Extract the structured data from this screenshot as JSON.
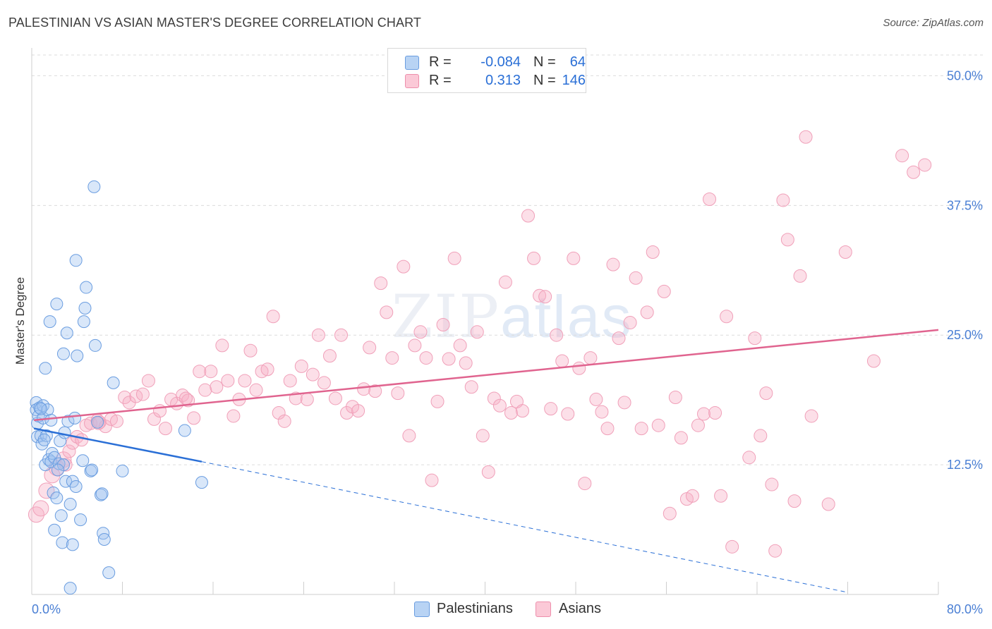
{
  "title": "PALESTINIAN VS ASIAN MASTER'S DEGREE CORRELATION CHART",
  "source": "Source: ZipAtlas.com",
  "watermark": {
    "zip": "ZIP",
    "atlas": "atlas"
  },
  "legend": {
    "rows": [
      {
        "r_label": "R =",
        "r_value": "-0.084",
        "n_label": "N =",
        "n_value": "64",
        "color": "#a8c8f0"
      },
      {
        "r_label": "R =",
        "r_value": "0.313",
        "n_label": "N =",
        "n_value": "146",
        "color": "#f7b6c8"
      }
    ]
  },
  "bottom_legend": {
    "palestinians": "Palestinians",
    "asians": "Asians"
  },
  "chart_data": {
    "type": "scatter",
    "title": "PALESTINIAN VS ASIAN MASTER'S DEGREE CORRELATION CHART",
    "xlabel": "",
    "ylabel": "Master's Degree",
    "xlim": [
      0,
      80
    ],
    "ylim": [
      0,
      52
    ],
    "x_tick_labels": [
      "0.0%",
      "80.0%"
    ],
    "y_ticks": [
      12.5,
      25.0,
      37.5,
      50.0
    ],
    "y_tick_labels": [
      "12.5%",
      "25.0%",
      "37.5%",
      "50.0%"
    ],
    "grid": "horizontal dashed",
    "legend_position": "top-center",
    "colors": {
      "palestinians": "#5b93e0",
      "asians": "#f08aaa",
      "pal_line": "#2a6fd6",
      "asian_line": "#e0648f"
    },
    "series": [
      {
        "name": "Palestinians",
        "trend": {
          "x0": 0.2,
          "y0": 16.0,
          "x1": 15.0,
          "y1": 12.8,
          "dash_to_x": 72,
          "dash_to_y": 0.2
        },
        "points": [
          [
            0.4,
            18.5
          ],
          [
            0.4,
            17.8
          ],
          [
            0.5,
            15.2
          ],
          [
            0.5,
            16.5
          ],
          [
            0.6,
            17.2
          ],
          [
            0.7,
            18.0
          ],
          [
            0.8,
            15.3
          ],
          [
            0.9,
            14.5
          ],
          [
            1.0,
            18.2
          ],
          [
            1.0,
            17.0
          ],
          [
            1.2,
            21.8
          ],
          [
            1.2,
            12.5
          ],
          [
            1.3,
            15.3
          ],
          [
            1.4,
            17.8
          ],
          [
            1.5,
            13.0
          ],
          [
            1.6,
            26.3
          ],
          [
            1.7,
            12.8
          ],
          [
            1.7,
            16.8
          ],
          [
            1.8,
            13.6
          ],
          [
            1.9,
            9.8
          ],
          [
            2.0,
            13.2
          ],
          [
            2.0,
            6.2
          ],
          [
            2.2,
            28.0
          ],
          [
            2.2,
            9.3
          ],
          [
            2.4,
            12.6
          ],
          [
            2.5,
            14.8
          ],
          [
            2.6,
            7.6
          ],
          [
            2.7,
            5.0
          ],
          [
            2.8,
            23.2
          ],
          [
            2.8,
            12.5
          ],
          [
            3.0,
            10.9
          ],
          [
            3.1,
            25.2
          ],
          [
            3.2,
            16.7
          ],
          [
            3.4,
            8.7
          ],
          [
            3.6,
            10.9
          ],
          [
            3.6,
            4.8
          ],
          [
            3.8,
            17.0
          ],
          [
            3.9,
            10.4
          ],
          [
            3.9,
            32.2
          ],
          [
            4.0,
            23.0
          ],
          [
            4.3,
            7.2
          ],
          [
            4.5,
            12.9
          ],
          [
            4.6,
            26.3
          ],
          [
            4.7,
            27.6
          ],
          [
            4.8,
            29.6
          ],
          [
            5.2,
            11.9
          ],
          [
            5.3,
            12.0
          ],
          [
            5.5,
            39.3
          ],
          [
            5.6,
            24.0
          ],
          [
            5.8,
            16.6
          ],
          [
            6.1,
            9.6
          ],
          [
            6.2,
            9.7
          ],
          [
            6.3,
            5.9
          ],
          [
            6.4,
            5.3
          ],
          [
            6.8,
            2.1
          ],
          [
            7.2,
            20.4
          ],
          [
            8.0,
            11.9
          ],
          [
            13.5,
            15.8
          ],
          [
            15.0,
            10.8
          ],
          [
            3.4,
            0.6
          ],
          [
            0.8,
            17.9
          ],
          [
            1.1,
            14.9
          ],
          [
            2.3,
            12.0
          ],
          [
            2.9,
            15.6
          ]
        ]
      },
      {
        "name": "Asians",
        "trend": {
          "x0": 0.2,
          "y0": 16.8,
          "x1": 80,
          "y1": 25.5
        },
        "points": [
          [
            0.4,
            7.7
          ],
          [
            0.8,
            8.3
          ],
          [
            1.3,
            10.0
          ],
          [
            1.8,
            11.5
          ],
          [
            2.2,
            12.2
          ],
          [
            2.8,
            13.0
          ],
          [
            3.0,
            12.5
          ],
          [
            3.3,
            13.8
          ],
          [
            3.6,
            14.6
          ],
          [
            4.0,
            15.2
          ],
          [
            4.4,
            14.9
          ],
          [
            4.8,
            16.3
          ],
          [
            5.2,
            16.5
          ],
          [
            5.8,
            16.8
          ],
          [
            6.0,
            16.6
          ],
          [
            6.5,
            16.2
          ],
          [
            7.0,
            16.9
          ],
          [
            7.5,
            16.7
          ],
          [
            8.2,
            19.0
          ],
          [
            8.6,
            18.5
          ],
          [
            9.2,
            19.1
          ],
          [
            9.8,
            19.3
          ],
          [
            10.3,
            20.6
          ],
          [
            10.8,
            16.9
          ],
          [
            11.3,
            17.7
          ],
          [
            11.8,
            16.0
          ],
          [
            12.3,
            18.8
          ],
          [
            12.8,
            18.4
          ],
          [
            13.3,
            19.2
          ],
          [
            13.8,
            18.7
          ],
          [
            14.3,
            17.0
          ],
          [
            14.8,
            21.5
          ],
          [
            15.3,
            19.7
          ],
          [
            15.8,
            21.5
          ],
          [
            16.3,
            20.0
          ],
          [
            16.8,
            24.0
          ],
          [
            17.3,
            20.6
          ],
          [
            17.8,
            17.2
          ],
          [
            18.3,
            18.8
          ],
          [
            18.8,
            20.6
          ],
          [
            19.3,
            23.5
          ],
          [
            19.8,
            19.7
          ],
          [
            20.3,
            21.5
          ],
          [
            20.8,
            21.7
          ],
          [
            21.3,
            26.8
          ],
          [
            21.8,
            17.5
          ],
          [
            22.3,
            16.7
          ],
          [
            22.8,
            20.6
          ],
          [
            23.3,
            18.9
          ],
          [
            23.8,
            22.0
          ],
          [
            24.3,
            18.8
          ],
          [
            24.8,
            21.2
          ],
          [
            25.3,
            25.0
          ],
          [
            25.8,
            20.4
          ],
          [
            26.3,
            23.0
          ],
          [
            26.8,
            18.9
          ],
          [
            27.3,
            25.0
          ],
          [
            27.8,
            17.5
          ],
          [
            28.3,
            18.1
          ],
          [
            28.8,
            17.7
          ],
          [
            29.3,
            19.8
          ],
          [
            29.8,
            23.8
          ],
          [
            30.3,
            19.6
          ],
          [
            30.8,
            30.0
          ],
          [
            31.3,
            27.2
          ],
          [
            31.8,
            22.8
          ],
          [
            32.3,
            19.4
          ],
          [
            32.8,
            31.6
          ],
          [
            33.3,
            15.3
          ],
          [
            33.8,
            24.0
          ],
          [
            34.3,
            25.3
          ],
          [
            34.8,
            22.8
          ],
          [
            35.3,
            11.0
          ],
          [
            35.8,
            18.6
          ],
          [
            36.3,
            26.0
          ],
          [
            36.8,
            22.7
          ],
          [
            37.3,
            32.4
          ],
          [
            37.8,
            24.0
          ],
          [
            38.3,
            22.3
          ],
          [
            38.8,
            20.0
          ],
          [
            39.3,
            25.3
          ],
          [
            39.8,
            15.3
          ],
          [
            40.3,
            11.8
          ],
          [
            40.8,
            18.9
          ],
          [
            41.3,
            18.2
          ],
          [
            41.8,
            30.1
          ],
          [
            42.3,
            17.5
          ],
          [
            42.8,
            18.6
          ],
          [
            43.3,
            17.7
          ],
          [
            43.8,
            36.5
          ],
          [
            44.3,
            32.4
          ],
          [
            44.8,
            28.8
          ],
          [
            45.3,
            28.7
          ],
          [
            45.8,
            17.9
          ],
          [
            46.3,
            25.0
          ],
          [
            46.8,
            22.5
          ],
          [
            47.3,
            17.4
          ],
          [
            47.8,
            32.4
          ],
          [
            48.3,
            21.8
          ],
          [
            48.8,
            10.7
          ],
          [
            49.3,
            22.8
          ],
          [
            49.8,
            18.8
          ],
          [
            50.3,
            17.6
          ],
          [
            50.8,
            16.0
          ],
          [
            51.3,
            31.8
          ],
          [
            51.8,
            24.7
          ],
          [
            52.3,
            18.5
          ],
          [
            52.8,
            26.2
          ],
          [
            53.3,
            30.5
          ],
          [
            53.8,
            16.0
          ],
          [
            54.3,
            27.2
          ],
          [
            54.8,
            33.0
          ],
          [
            55.3,
            16.3
          ],
          [
            55.8,
            29.2
          ],
          [
            56.3,
            7.8
          ],
          [
            56.8,
            19.0
          ],
          [
            57.3,
            15.1
          ],
          [
            57.8,
            9.2
          ],
          [
            58.3,
            9.5
          ],
          [
            58.8,
            16.3
          ],
          [
            59.3,
            17.4
          ],
          [
            59.8,
            38.1
          ],
          [
            60.3,
            17.5
          ],
          [
            60.8,
            9.5
          ],
          [
            61.3,
            26.8
          ],
          [
            61.8,
            4.6
          ],
          [
            63.3,
            13.2
          ],
          [
            63.8,
            24.7
          ],
          [
            64.3,
            15.3
          ],
          [
            64.8,
            19.4
          ],
          [
            65.3,
            10.6
          ],
          [
            65.6,
            4.2
          ],
          [
            66.3,
            38.0
          ],
          [
            66.7,
            34.2
          ],
          [
            67.3,
            9.0
          ],
          [
            67.8,
            30.7
          ],
          [
            68.3,
            44.1
          ],
          [
            68.8,
            17.2
          ],
          [
            70.3,
            8.7
          ],
          [
            71.8,
            33.0
          ],
          [
            74.3,
            22.5
          ],
          [
            76.8,
            42.3
          ],
          [
            77.8,
            40.7
          ],
          [
            78.8,
            41.4
          ],
          [
            5.9,
            16.5
          ],
          [
            13.6,
            18.9
          ]
        ]
      }
    ]
  }
}
